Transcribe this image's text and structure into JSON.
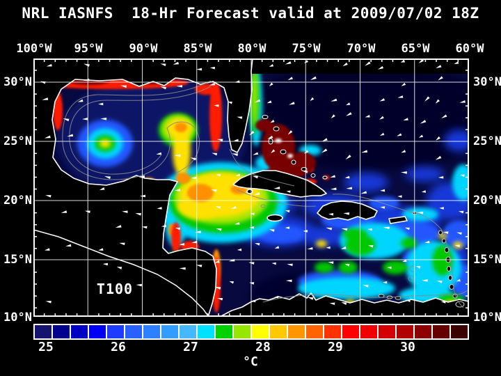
{
  "title": "NRL IASNFS  18-Hr Forecast valid at 2009/07/02 18Z",
  "map": {
    "overlay_label": "T100",
    "lon_labels": [
      "100°W",
      "95°W",
      "90°W",
      "85°W",
      "80°W",
      "75°W",
      "70°W",
      "65°W",
      "60°W"
    ],
    "lat_labels_left": [
      "30°N",
      "25°N",
      "20°N",
      "15°N",
      "10°N"
    ],
    "lat_labels_right": [
      "30°N",
      "25°N",
      "20°N",
      "15°N",
      "10°N"
    ]
  },
  "colorbar": {
    "tick_labels": [
      "25",
      "26",
      "27",
      "28",
      "29",
      "30"
    ],
    "unit": "°C",
    "cell_colors": [
      "#14146e",
      "#00008c",
      "#0000c3",
      "#0000f5",
      "#1e3cff",
      "#2861ff",
      "#2d80ff",
      "#339cff",
      "#45b8ff",
      "#00e1ff",
      "#00d200",
      "#96e600",
      "#ffff00",
      "#ffc800",
      "#ff9600",
      "#ff6400",
      "#ff3200",
      "#ff0000",
      "#f00000",
      "#d20000",
      "#b00000",
      "#8c0000",
      "#640000",
      "#3c0000"
    ]
  },
  "chart_data": {
    "type": "heatmap",
    "title": "NRL IASNFS 18-Hr Forecast valid at 2009/07/02 18Z",
    "field_label": "T100",
    "unit": "°C",
    "colorbar_ticks": [
      25,
      26,
      27,
      28,
      29,
      30
    ],
    "colorbar_range_estimate": [
      24.75,
      30.75
    ],
    "colorbar_cells": 24,
    "lon_ticks_deg_west": [
      100,
      95,
      90,
      85,
      80,
      75,
      70,
      65,
      60
    ],
    "lat_ticks_deg_north": [
      30,
      25,
      20,
      15,
      10
    ],
    "grid": true,
    "legend_position": "bottom"
  }
}
